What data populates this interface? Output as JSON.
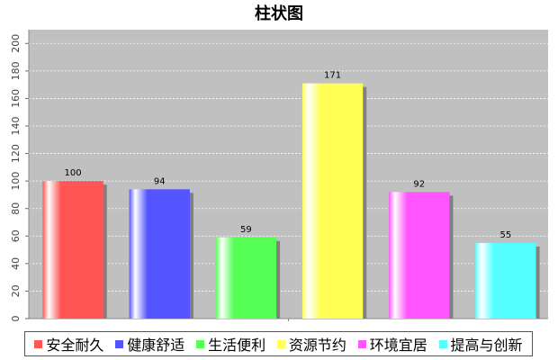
{
  "chart_data": {
    "type": "bar",
    "title": "柱状图",
    "categories": [
      "安全耐久",
      "健康舒适",
      "生活便利",
      "资源节约",
      "环境宜居",
      "提高与创新"
    ],
    "values": [
      100,
      94,
      59,
      171,
      92,
      55
    ],
    "colors": [
      "#ff5555",
      "#5555ff",
      "#55ff55",
      "#ffff55",
      "#ff55ff",
      "#55ffff"
    ],
    "ylim": [
      0,
      210
    ],
    "yticks": [
      0,
      20,
      40,
      60,
      80,
      100,
      120,
      140,
      160,
      180,
      200
    ],
    "grid": true,
    "legend_position": "bottom",
    "plot_background": "#c0c0c0"
  }
}
